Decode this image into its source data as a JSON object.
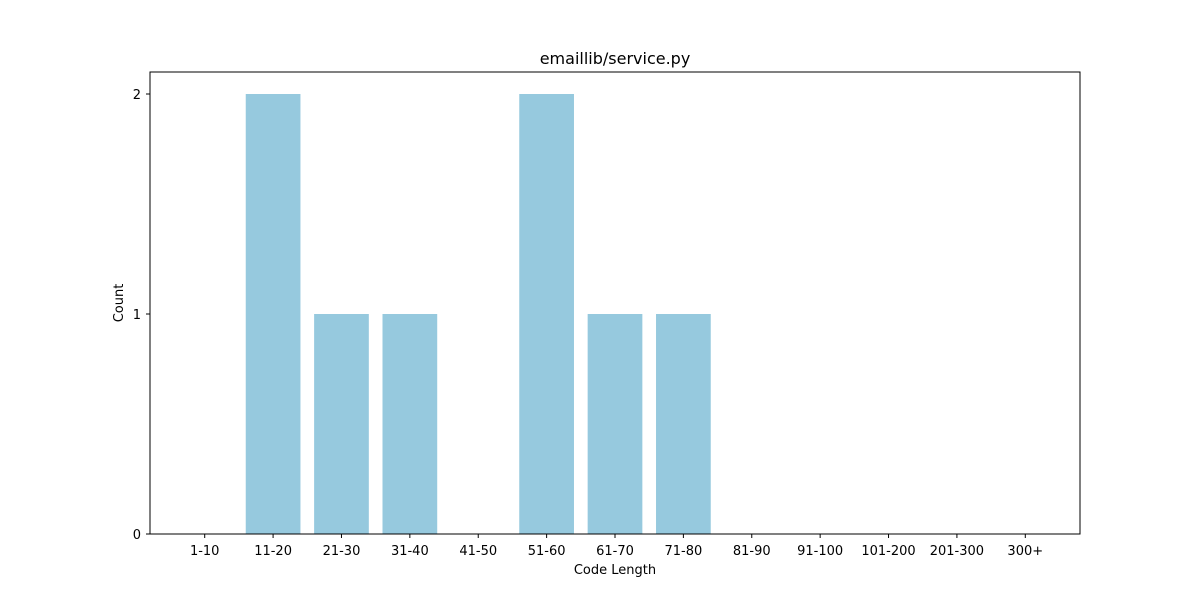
{
  "chart_data": {
    "type": "bar",
    "title": "emaillib/service.py",
    "xlabel": "Code Length",
    "ylabel": "Count",
    "categories": [
      "1-10",
      "11-20",
      "21-30",
      "31-40",
      "41-50",
      "51-60",
      "61-70",
      "71-80",
      "81-90",
      "91-100",
      "101-200",
      "201-300",
      "300+"
    ],
    "values": [
      0,
      2,
      1,
      1,
      0,
      2,
      1,
      1,
      0,
      0,
      0,
      0,
      0
    ],
    "ylim": [
      0,
      2.1
    ],
    "yticks": [
      0,
      1,
      2
    ],
    "bar_color": "#96c9de",
    "grid": false,
    "legend": false
  }
}
